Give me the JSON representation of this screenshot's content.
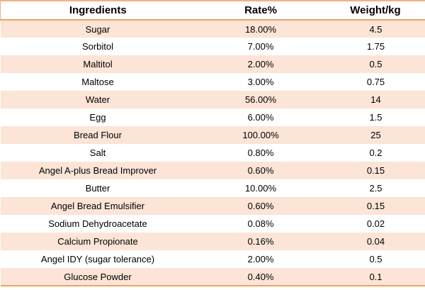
{
  "table": {
    "columns": [
      "Ingredients",
      "Rate%",
      "Weight/kg"
    ],
    "rows": [
      {
        "ingredient": "Sugar",
        "rate": "18.00%",
        "weight": "4.5"
      },
      {
        "ingredient": "Sorbitol",
        "rate": "7.00%",
        "weight": "1.75"
      },
      {
        "ingredient": "Maltitol",
        "rate": "2.00%",
        "weight": "0.5"
      },
      {
        "ingredient": "Maltose",
        "rate": "3.00%",
        "weight": "0.75"
      },
      {
        "ingredient": "Water",
        "rate": "56.00%",
        "weight": "14"
      },
      {
        "ingredient": "Egg",
        "rate": "6.00%",
        "weight": "1.5"
      },
      {
        "ingredient": "Bread Flour",
        "rate": "100.00%",
        "weight": "25"
      },
      {
        "ingredient": "Salt",
        "rate": "0.80%",
        "weight": "0.2"
      },
      {
        "ingredient": "Angel A-plus Bread Improver",
        "rate": "0.60%",
        "weight": "0.15"
      },
      {
        "ingredient": "Butter",
        "rate": "10.00%",
        "weight": "2.5"
      },
      {
        "ingredient": "Angel Bread Emulsifier",
        "rate": "0.60%",
        "weight": "0.15"
      },
      {
        "ingredient": "Sodium Dehydroacetate",
        "rate": "0.08%",
        "weight": "0.02"
      },
      {
        "ingredient": "Calcium Propionate",
        "rate": "0.16%",
        "weight": "0.04"
      },
      {
        "ingredient": "Angel IDY (sugar tolerance)",
        "rate": "2.00%",
        "weight": "0.5"
      },
      {
        "ingredient": "Glucose Powder",
        "rate": "0.40%",
        "weight": "0.1"
      }
    ]
  },
  "colors": {
    "band_fill": "#fce4d6",
    "border_light": "#f4b183",
    "border_strong": "#f0a164",
    "text": "#000000",
    "background": "#ffffff"
  },
  "chart_data": {
    "type": "table",
    "title": "Ingredients",
    "columns": [
      "Ingredients",
      "Rate%",
      "Weight/kg"
    ],
    "rows": [
      [
        "Sugar",
        "18.00%",
        "4.5"
      ],
      [
        "Sorbitol",
        "7.00%",
        "1.75"
      ],
      [
        "Maltitol",
        "2.00%",
        "0.5"
      ],
      [
        "Maltose",
        "3.00%",
        "0.75"
      ],
      [
        "Water",
        "56.00%",
        "14"
      ],
      [
        "Egg",
        "6.00%",
        "1.5"
      ],
      [
        "Bread Flour",
        "100.00%",
        "25"
      ],
      [
        "Salt",
        "0.80%",
        "0.2"
      ],
      [
        "Angel A-plus Bread Improver",
        "0.60%",
        "0.15"
      ],
      [
        "Butter",
        "10.00%",
        "2.5"
      ],
      [
        "Angel Bread Emulsifier",
        "0.60%",
        "0.15"
      ],
      [
        "Sodium Dehydroacetate",
        "0.08%",
        "0.02"
      ],
      [
        "Calcium Propionate",
        "0.16%",
        "0.04"
      ],
      [
        "Angel IDY (sugar tolerance)",
        "2.00%",
        "0.5"
      ],
      [
        "Glucose Powder",
        "0.40%",
        "0.1"
      ]
    ],
    "rate_values_percent": [
      18,
      7,
      2,
      3,
      56,
      6,
      100,
      0.8,
      0.6,
      10,
      0.6,
      0.08,
      0.16,
      2,
      0.4
    ],
    "weight_values_kg": [
      4.5,
      1.75,
      0.5,
      0.75,
      14,
      1.5,
      25,
      0.2,
      0.15,
      2.5,
      0.15,
      0.02,
      0.04,
      0.5,
      0.1
    ],
    "layout": {
      "banded_rows": true,
      "band_color": "#fce4d6",
      "grid": "horizontal rules only (top, under header, bottom)"
    }
  }
}
